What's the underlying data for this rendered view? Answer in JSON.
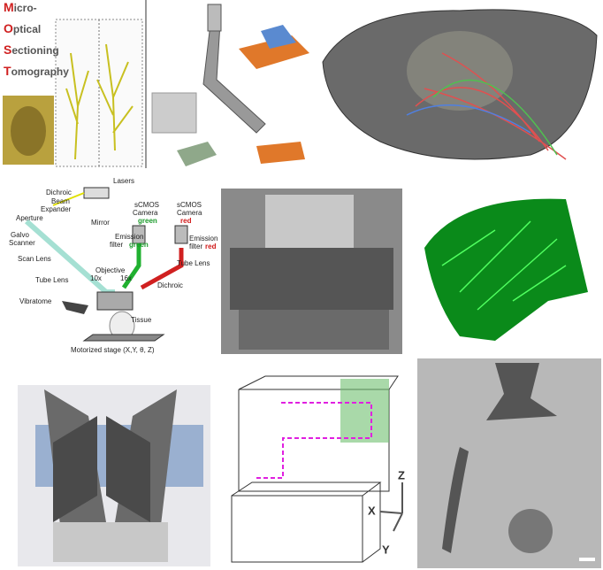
{
  "title_words": [
    "Micro-",
    "Optical",
    "Sectioning",
    "Tomography"
  ],
  "diagram": {
    "labels": [
      "Lasers",
      "Dichroic",
      "Beam",
      "Expander",
      "Aperture",
      "Mirror",
      "sCMOS",
      "Camera",
      "green",
      "sCMOS",
      "Camera",
      "red",
      "Galvo",
      "Scanner",
      "Emission",
      "filter",
      "green",
      "Emission",
      "filter",
      "red",
      "Scan Lens",
      "Objective",
      "10x",
      "16x",
      "Tube Lens",
      "Tube Lens",
      "Dichroic",
      "Vibratome",
      "Tissue",
      "Motorized stage (X,Y, θ, Z)"
    ]
  },
  "axes": {
    "z": "Z",
    "x": "X",
    "y": "Y"
  }
}
